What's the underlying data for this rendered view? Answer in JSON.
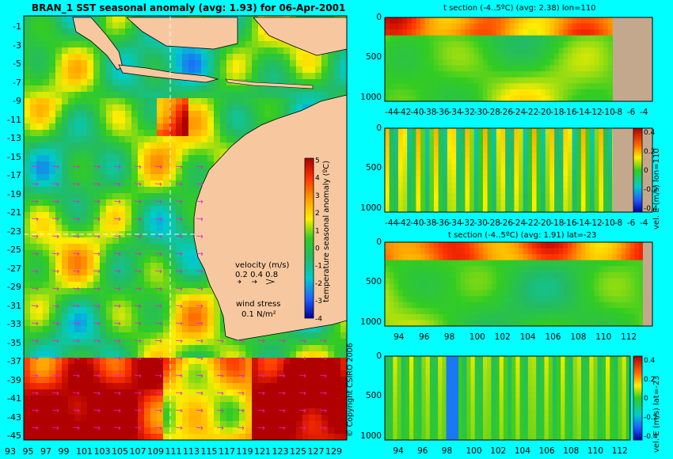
{
  "map": {
    "title": "BRAN_1 SST seasonal anomaly (avg: 1.93) for 06-Apr-2001",
    "lat_ticks": [
      "-1",
      "-3",
      "-5",
      "-7",
      "-9",
      "-11",
      "-13",
      "-15",
      "-17",
      "-19",
      "-21",
      "-23",
      "-25",
      "-27",
      "-29",
      "-31",
      "-33",
      "-35",
      "-37",
      "-39",
      "-41",
      "-43",
      "-45"
    ],
    "lon_ticks": [
      "93",
      "95",
      "97",
      "99",
      "101",
      "103",
      "105",
      "107",
      "109",
      "111",
      "113",
      "115",
      "117",
      "119",
      "121",
      "123",
      "125",
      "127",
      "129"
    ],
    "colorbar": {
      "label": "temperature seasonal anomaly (ºC)",
      "ticks": [
        "5",
        "4",
        "3",
        "2",
        "1",
        "0",
        "-1",
        "-2",
        "-3",
        "-4"
      ]
    },
    "velocity_legend": {
      "title": "velocity (m/s)",
      "scale": "0.2 0.4 0.8"
    },
    "wind_legend": {
      "title": "wind stress",
      "scale": "0.1 N/m²"
    },
    "copyright": "© Copyright CSIRO 2006"
  },
  "colors": {
    "background": "#00ffff",
    "land": "#f7c8a0",
    "section_land": "#c4a88e",
    "hot": "#b00000",
    "warm": "#ff8c00",
    "neutral": "#22cc22",
    "cold": "#0000a0"
  },
  "chart_data": [
    {
      "type": "heatmap",
      "title": "t section (-4..5ºC) (avg: 2.38) lon=110",
      "xlabel": "",
      "ylabel": "",
      "x_ticks": [
        "-44",
        "-42",
        "-40",
        "-38",
        "-36",
        "-34",
        "-32",
        "-30",
        "-28",
        "-26",
        "-24",
        "-22",
        "-20",
        "-18",
        "-16",
        "-14",
        "-12",
        "-10",
        "-8",
        "-6",
        "-4"
      ],
      "y_ticks": [
        "0",
        "500",
        "1000"
      ],
      "xlim": [
        -45,
        -3
      ],
      "ylim": [
        1050,
        0
      ],
      "color_range": [
        -4,
        5
      ]
    },
    {
      "type": "heatmap",
      "title": "",
      "xlabel": "",
      "ylabel": "vel. E (m/s) lon=110",
      "x_ticks": [
        "-44",
        "-42",
        "-40",
        "-38",
        "-36",
        "-34",
        "-32",
        "-30",
        "-28",
        "-26",
        "-24",
        "-22",
        "-20",
        "-18",
        "-16",
        "-14",
        "-12",
        "-10",
        "-8",
        "-6",
        "-4"
      ],
      "y_ticks": [
        "0",
        "500",
        "1000"
      ],
      "colorbar_ticks": [
        "0.4",
        "0.2",
        "0",
        "-0.2",
        "-0.4"
      ],
      "xlim": [
        -45,
        -3
      ],
      "ylim": [
        1050,
        0
      ]
    },
    {
      "type": "heatmap",
      "title": "t section (-4..5ºC) (avg: 1.91) lat=-23",
      "xlabel": "",
      "ylabel": "",
      "x_ticks": [
        "94",
        "96",
        "98",
        "100",
        "102",
        "104",
        "106",
        "108",
        "110",
        "112"
      ],
      "y_ticks": [
        "0",
        "500",
        "1000"
      ],
      "xlim": [
        92.8,
        114
      ],
      "ylim": [
        1050,
        0
      ],
      "color_range": [
        -4,
        5
      ]
    },
    {
      "type": "heatmap",
      "title": "",
      "xlabel": "",
      "ylabel": "vel. E (m/s) lat=-23",
      "x_ticks": [
        "94",
        "96",
        "98",
        "100",
        "102",
        "104",
        "106",
        "108",
        "110",
        "112"
      ],
      "y_ticks": [
        "0",
        "500",
        "1000"
      ],
      "colorbar_ticks": [
        "0.4",
        "0.2",
        "0",
        "-0.2",
        "-0.4"
      ],
      "xlim": [
        92.8,
        113
      ],
      "ylim": [
        1050,
        0
      ]
    }
  ]
}
